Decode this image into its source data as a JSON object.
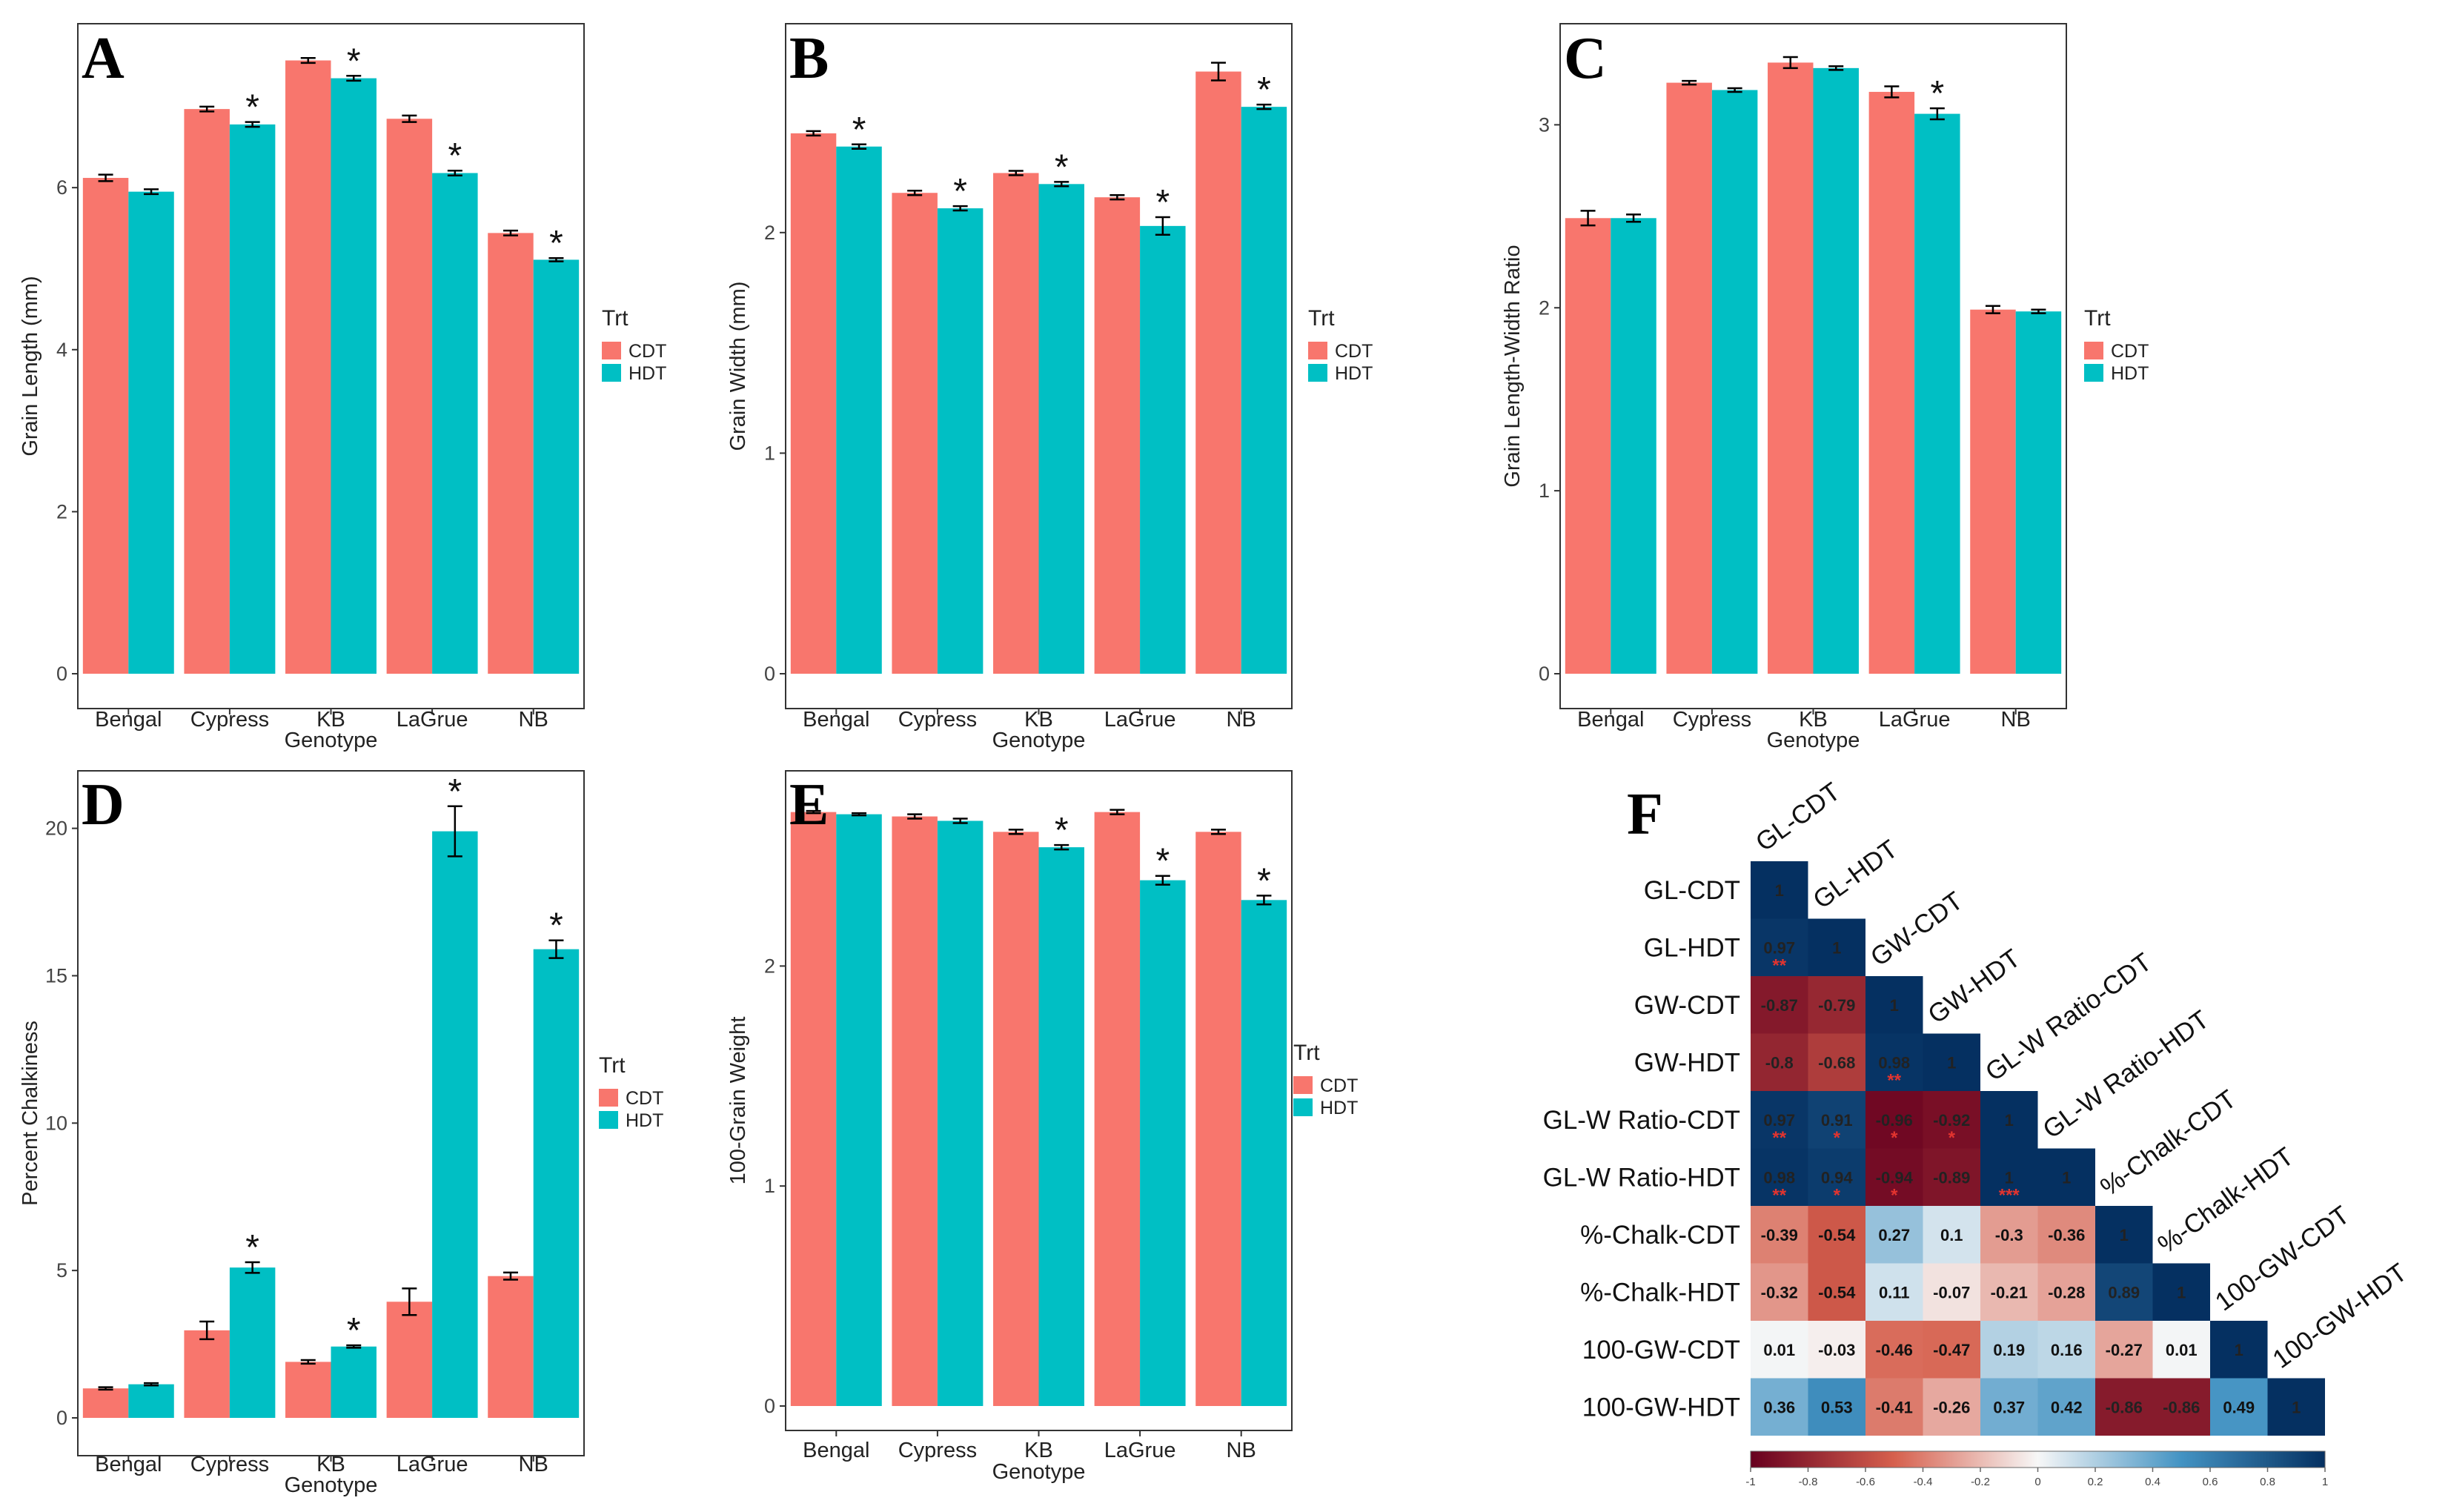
{
  "colors": {
    "cdt": "#F8766D",
    "hdt": "#00BFC4",
    "err": "#000000",
    "neg": "#67001F",
    "mid": "#F7F7F7",
    "pos": "#053061"
  },
  "chart_data": [
    {
      "panel": "A",
      "type": "bar",
      "title": "",
      "xlabel": "Genotype",
      "ylabel": "Grain Length (mm)",
      "categories": [
        "Bengal",
        "Cypress",
        "KB",
        "LaGrue",
        "NB"
      ],
      "series": [
        {
          "name": "CDT",
          "values": [
            6.12,
            6.97,
            7.57,
            6.85,
            5.44
          ],
          "errors": [
            0.04,
            0.03,
            0.03,
            0.04,
            0.03
          ]
        },
        {
          "name": "HDT",
          "values": [
            5.95,
            6.78,
            7.35,
            6.18,
            5.11
          ],
          "errors": [
            0.03,
            0.03,
            0.03,
            0.03,
            0.02
          ]
        }
      ],
      "significant_hdt": [
        "",
        "*",
        "*",
        "*",
        "*"
      ],
      "yticks": [
        0,
        2,
        4,
        6
      ],
      "ylim": [
        0,
        7.95
      ],
      "legend_title": "Trt",
      "legend_labels": [
        "CDT",
        "HDT"
      ]
    },
    {
      "panel": "B",
      "type": "bar",
      "title": "",
      "xlabel": "Genotype",
      "ylabel": "Grain Width (mm)",
      "categories": [
        "Bengal",
        "Cypress",
        "KB",
        "LaGrue",
        "NB"
      ],
      "series": [
        {
          "name": "CDT",
          "values": [
            2.45,
            2.18,
            2.27,
            2.16,
            2.73
          ],
          "errors": [
            0.01,
            0.01,
            0.01,
            0.01,
            0.04
          ]
        },
        {
          "name": "HDT",
          "values": [
            2.39,
            2.11,
            2.22,
            2.03,
            2.57
          ],
          "errors": [
            0.01,
            0.01,
            0.01,
            0.04,
            0.01
          ]
        }
      ],
      "significant_hdt": [
        "*",
        "*",
        "*",
        "*",
        "*"
      ],
      "yticks": [
        0,
        1,
        2
      ],
      "ylim": [
        0,
        2.92
      ],
      "legend_title": "Trt",
      "legend_labels": [
        "CDT",
        "HDT"
      ]
    },
    {
      "panel": "C",
      "type": "bar",
      "title": "",
      "xlabel": "Genotype",
      "ylabel": "Grain Length-Width Ratio",
      "categories": [
        "Bengal",
        "Cypress",
        "KB",
        "LaGrue",
        "NB"
      ],
      "series": [
        {
          "name": "CDT",
          "values": [
            2.49,
            3.23,
            3.34,
            3.18,
            1.99
          ],
          "errors": [
            0.04,
            0.01,
            0.03,
            0.03,
            0.02
          ]
        },
        {
          "name": "HDT",
          "values": [
            2.49,
            3.19,
            3.31,
            3.06,
            1.98
          ],
          "errors": [
            0.02,
            0.01,
            0.01,
            0.03,
            0.01
          ]
        }
      ],
      "significant_hdt": [
        "",
        "",
        "",
        "*",
        ""
      ],
      "yticks": [
        0,
        1,
        2,
        3
      ],
      "ylim": [
        0,
        3.52
      ],
      "legend_title": "Trt",
      "legend_labels": [
        "CDT",
        "HDT"
      ]
    },
    {
      "panel": "D",
      "type": "bar",
      "title": "",
      "xlabel": "Genotype",
      "ylabel": "Percent Chalkiness",
      "categories": [
        "Bengal",
        "Cypress",
        "KB",
        "LaGrue",
        "NB"
      ],
      "series": [
        {
          "name": "CDT",
          "values": [
            1.0,
            2.97,
            1.9,
            3.94,
            4.81
          ],
          "errors": [
            0.04,
            0.3,
            0.06,
            0.45,
            0.12
          ]
        },
        {
          "name": "HDT",
          "values": [
            1.14,
            5.1,
            2.42,
            19.9,
            15.9
          ],
          "errors": [
            0.04,
            0.18,
            0.04,
            0.85,
            0.3
          ]
        }
      ],
      "significant_hdt": [
        "",
        "*",
        "*",
        "*",
        "*"
      ],
      "yticks": [
        0,
        5,
        10,
        15,
        20
      ],
      "ylim": [
        0,
        21.7
      ],
      "legend_title": "Trt",
      "legend_labels": [
        "CDT",
        "HDT"
      ]
    },
    {
      "panel": "E",
      "type": "bar",
      "title": "",
      "xlabel": "Genotype",
      "ylabel": "100-Grain Weight",
      "categories": [
        "Bengal",
        "Cypress",
        "KB",
        "LaGrue",
        "NB"
      ],
      "series": [
        {
          "name": "CDT",
          "values": [
            2.7,
            2.68,
            2.61,
            2.7,
            2.61
          ],
          "errors": [
            0.005,
            0.01,
            0.01,
            0.01,
            0.01
          ]
        },
        {
          "name": "HDT",
          "values": [
            2.69,
            2.66,
            2.54,
            2.39,
            2.3
          ],
          "errors": [
            0.005,
            0.01,
            0.01,
            0.02,
            0.02
          ]
        }
      ],
      "significant_hdt": [
        "",
        "",
        "*",
        "*",
        "*"
      ],
      "yticks": [
        0,
        1,
        2
      ],
      "ylim": [
        0,
        2.82
      ],
      "legend_title": "Trt",
      "legend_labels": [
        "CDT",
        "HDT"
      ]
    },
    {
      "panel": "F",
      "type": "heatmap",
      "title": "",
      "xlabel": "",
      "ylabel": "",
      "labels": [
        "GL-CDT",
        "GL-HDT",
        "GW-CDT",
        "GW-HDT",
        "GL-W Ratio-CDT",
        "GL-W Ratio-HDT",
        "%-Chalk-CDT",
        "%-Chalk-HDT",
        "100-GW-CDT",
        "100-GW-HDT"
      ],
      "matrix": [
        [
          1
        ],
        [
          0.97,
          1
        ],
        [
          -0.87,
          -0.79,
          1
        ],
        [
          -0.8,
          -0.68,
          0.98,
          1
        ],
        [
          0.97,
          0.91,
          -0.96,
          -0.92,
          1
        ],
        [
          0.98,
          0.94,
          -0.94,
          -0.89,
          1,
          1
        ],
        [
          -0.39,
          -0.54,
          0.27,
          0.1,
          -0.3,
          -0.36,
          1
        ],
        [
          -0.32,
          -0.54,
          0.11,
          -0.07,
          -0.21,
          -0.28,
          0.89,
          1
        ],
        [
          0.01,
          -0.03,
          -0.46,
          -0.47,
          0.19,
          0.16,
          -0.27,
          0.01,
          1
        ],
        [
          0.36,
          0.53,
          -0.41,
          -0.26,
          0.37,
          0.42,
          -0.86,
          -0.86,
          0.49,
          1
        ]
      ],
      "significance": [
        [
          ""
        ],
        [
          "**",
          ""
        ],
        [
          "",
          "",
          ""
        ],
        [
          "",
          "",
          "**",
          ""
        ],
        [
          "**",
          "*",
          "*",
          "*",
          ""
        ],
        [
          "**",
          "*",
          "*",
          "",
          "***",
          ""
        ],
        [
          "",
          "",
          "",
          "",
          "",
          "",
          ""
        ],
        [
          "",
          "",
          "",
          "",
          "",
          "",
          "",
          ""
        ],
        [
          "",
          "",
          "",
          "",
          "",
          "",
          "",
          "",
          ""
        ],
        [
          "",
          "",
          "",
          "",
          "",
          "",
          "",
          "",
          "",
          ""
        ]
      ],
      "colorbar_ticks": [
        "-1",
        "-0.8",
        "-0.6",
        "-0.4",
        "-0.2",
        "0",
        "0.2",
        "0.4",
        "0.6",
        "0.8",
        "1"
      ],
      "colorbar_range": [
        -1,
        1
      ]
    }
  ]
}
